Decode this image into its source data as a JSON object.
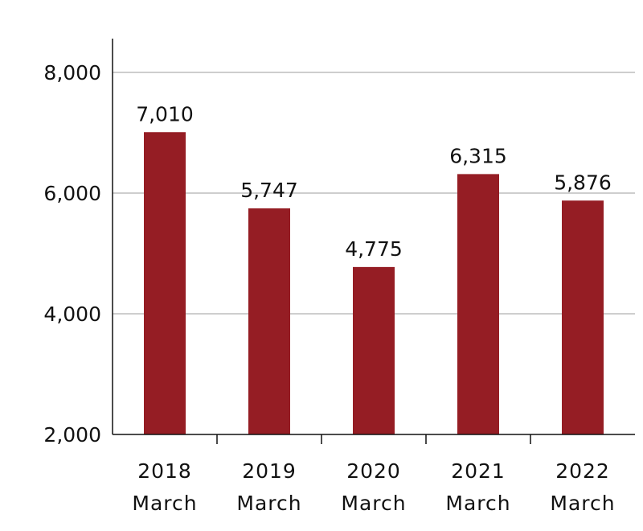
{
  "chart_data": {
    "type": "bar",
    "title": "",
    "xlabel": "",
    "ylabel": "",
    "categories": [
      [
        "2018",
        "March"
      ],
      [
        "2019",
        "March"
      ],
      [
        "2020",
        "March"
      ],
      [
        "2021",
        "March"
      ],
      [
        "2022",
        "March"
      ]
    ],
    "values": [
      7010,
      5747,
      4775,
      6315,
      5876
    ],
    "data_labels": [
      "7,010",
      "5,747",
      "4,775",
      "6,315",
      "5,876"
    ],
    "ylim": [
      2000,
      8000
    ],
    "yticks": [
      2000,
      4000,
      6000,
      8000
    ],
    "ytick_labels": [
      "2,000",
      "4,000",
      "6,000",
      "8,000"
    ],
    "grid": true,
    "legend": "none",
    "colors": {
      "bar": "#951d24",
      "grid": "#bdbdbd",
      "axis": "#111111"
    }
  }
}
